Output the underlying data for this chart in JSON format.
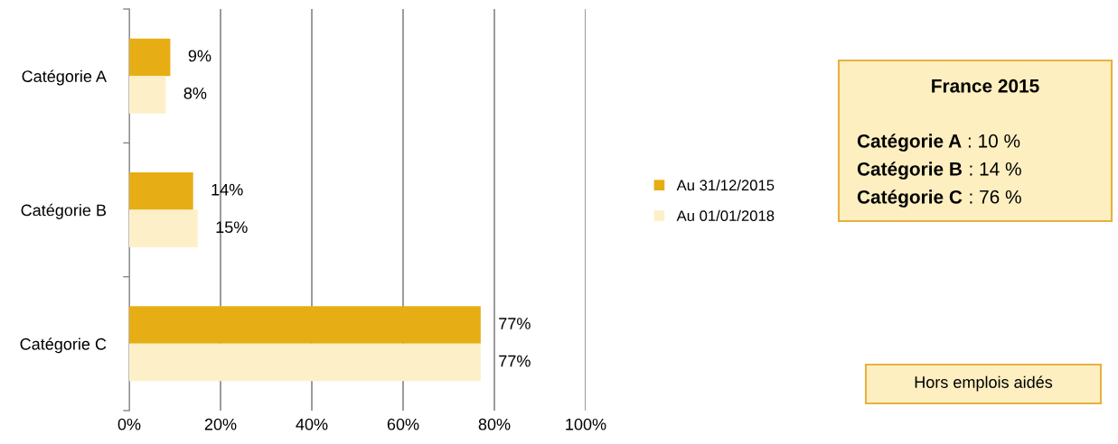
{
  "chart_data": {
    "type": "bar",
    "orientation": "horizontal",
    "categories": [
      "Catégorie A",
      "Catégorie B",
      "Catégorie C"
    ],
    "series": [
      {
        "name": "Au 31/12/2015",
        "color": "#e6ae14",
        "values": [
          9,
          14,
          77
        ],
        "value_labels": [
          "9%",
          "14%",
          "77%"
        ]
      },
      {
        "name": "Au 01/01/2018",
        "color": "#fdf0c8",
        "values": [
          8,
          15,
          77
        ],
        "value_labels": [
          "8%",
          "15%",
          "77%"
        ]
      }
    ],
    "xlim": [
      0,
      100
    ],
    "xticks": [
      {
        "value": 0,
        "label": "0%"
      },
      {
        "value": 20,
        "label": "20%"
      },
      {
        "value": 40,
        "label": "40%"
      },
      {
        "value": 60,
        "label": "60%"
      },
      {
        "value": 80,
        "label": "80%"
      },
      {
        "value": 100,
        "label": "100%"
      }
    ],
    "grid": "x",
    "legend": "right",
    "annotations": [
      "France 2015",
      "Catégorie A : 10 %",
      "Catégorie B : 14 %",
      "Catégorie C : 76 %",
      "Hors emplois aidés"
    ]
  }
}
